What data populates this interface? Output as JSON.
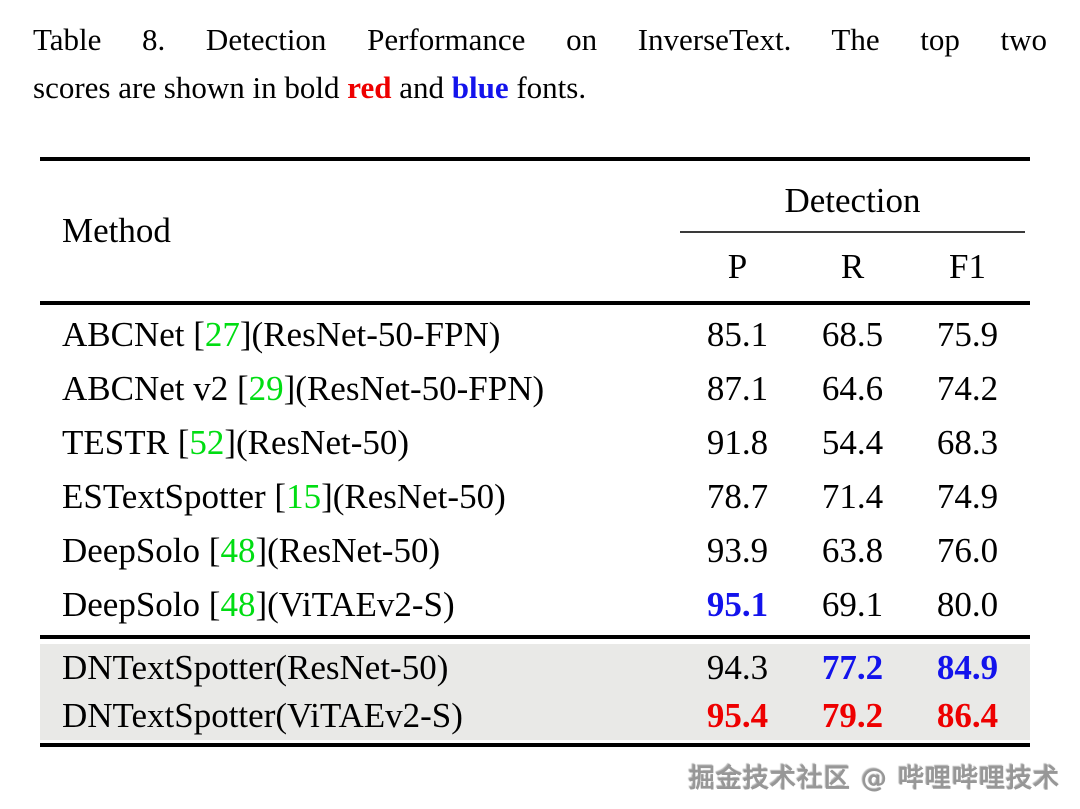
{
  "caption": {
    "line1": "Table 8. Detection Performance on InverseText. The top two",
    "line2_prefix": "scores are shown in bold ",
    "red_word": "red",
    "line2_mid": " and ",
    "blue_word": "blue",
    "line2_suffix": " fonts."
  },
  "table": {
    "method_header": "Method",
    "group_header": "Detection",
    "columns": [
      "P",
      "R",
      "F1"
    ],
    "rows": [
      {
        "method_pre": "ABCNet [",
        "cite": "27",
        "method_post": "](ResNet-50-FPN)",
        "p": "85.1",
        "r": "68.5",
        "f1": "75.9"
      },
      {
        "method_pre": "ABCNet v2 [",
        "cite": "29",
        "method_post": "](ResNet-50-FPN)",
        "p": "87.1",
        "r": "64.6",
        "f1": "74.2"
      },
      {
        "method_pre": "TESTR [",
        "cite": "52",
        "method_post": "](ResNet-50)",
        "p": "91.8",
        "r": "54.4",
        "f1": "68.3"
      },
      {
        "method_pre": "ESTextSpotter [",
        "cite": "15",
        "method_post": "](ResNet-50)",
        "p": "78.7",
        "r": "71.4",
        "f1": "74.9"
      },
      {
        "method_pre": "DeepSolo [",
        "cite": "48",
        "method_post": "](ResNet-50)",
        "p": "93.9",
        "r": "63.8",
        "f1": "76.0"
      },
      {
        "method_pre": "DeepSolo [",
        "cite": "48",
        "method_post": "](ViTAEv2-S)",
        "p": "95.1",
        "r": "69.1",
        "f1": "80.0",
        "p_emph": "blue"
      }
    ],
    "highlight_rows": [
      {
        "method_pre": "DNTextSpotter(ResNet-50)",
        "cite": "",
        "method_post": "",
        "p": "94.3",
        "r": "77.2",
        "f1": "84.9",
        "r_emph": "blue",
        "f1_emph": "blue"
      },
      {
        "method_pre": "DNTextSpotter(ViTAEv2-S)",
        "cite": "",
        "method_post": "",
        "p": "95.4",
        "r": "79.2",
        "f1": "86.4",
        "p_emph": "red",
        "r_emph": "red",
        "f1_emph": "red"
      }
    ]
  },
  "chart_data": {
    "type": "table",
    "title": "Table 8. Detection Performance on InverseText",
    "columns": [
      "Method",
      "P",
      "R",
      "F1"
    ],
    "rows": [
      [
        "ABCNet [27](ResNet-50-FPN)",
        85.1,
        68.5,
        75.9
      ],
      [
        "ABCNet v2 [29](ResNet-50-FPN)",
        87.1,
        64.6,
        74.2
      ],
      [
        "TESTR [52](ResNet-50)",
        91.8,
        54.4,
        68.3
      ],
      [
        "ESTextSpotter [15](ResNet-50)",
        78.7,
        71.4,
        74.9
      ],
      [
        "DeepSolo [48](ResNet-50)",
        93.9,
        63.8,
        76.0
      ],
      [
        "DeepSolo [48](ViTAEv2-S)",
        95.1,
        69.1,
        80.0
      ],
      [
        "DNTextSpotter(ResNet-50)",
        94.3,
        77.2,
        84.9
      ],
      [
        "DNTextSpotter(ViTAEv2-S)",
        95.4,
        79.2,
        86.4
      ]
    ],
    "best_scores_red": [
      [
        "DNTextSpotter(ViTAEv2-S)",
        "P"
      ],
      [
        "DNTextSpotter(ViTAEv2-S)",
        "R"
      ],
      [
        "DNTextSpotter(ViTAEv2-S)",
        "F1"
      ]
    ],
    "second_scores_blue": [
      [
        "DeepSolo [48](ViTAEv2-S)",
        "P"
      ],
      [
        "DNTextSpotter(ResNet-50)",
        "R"
      ],
      [
        "DNTextSpotter(ResNet-50)",
        "F1"
      ]
    ]
  },
  "colors": {
    "red": "#ee0000",
    "blue": "#1313ec",
    "green": "#00dd12",
    "row_highlight": "#e9e9e7",
    "rule": "#000000",
    "watermark_gray": "#979797"
  },
  "watermark": "掘金技术社区 @ 哔哩哔哩技术"
}
